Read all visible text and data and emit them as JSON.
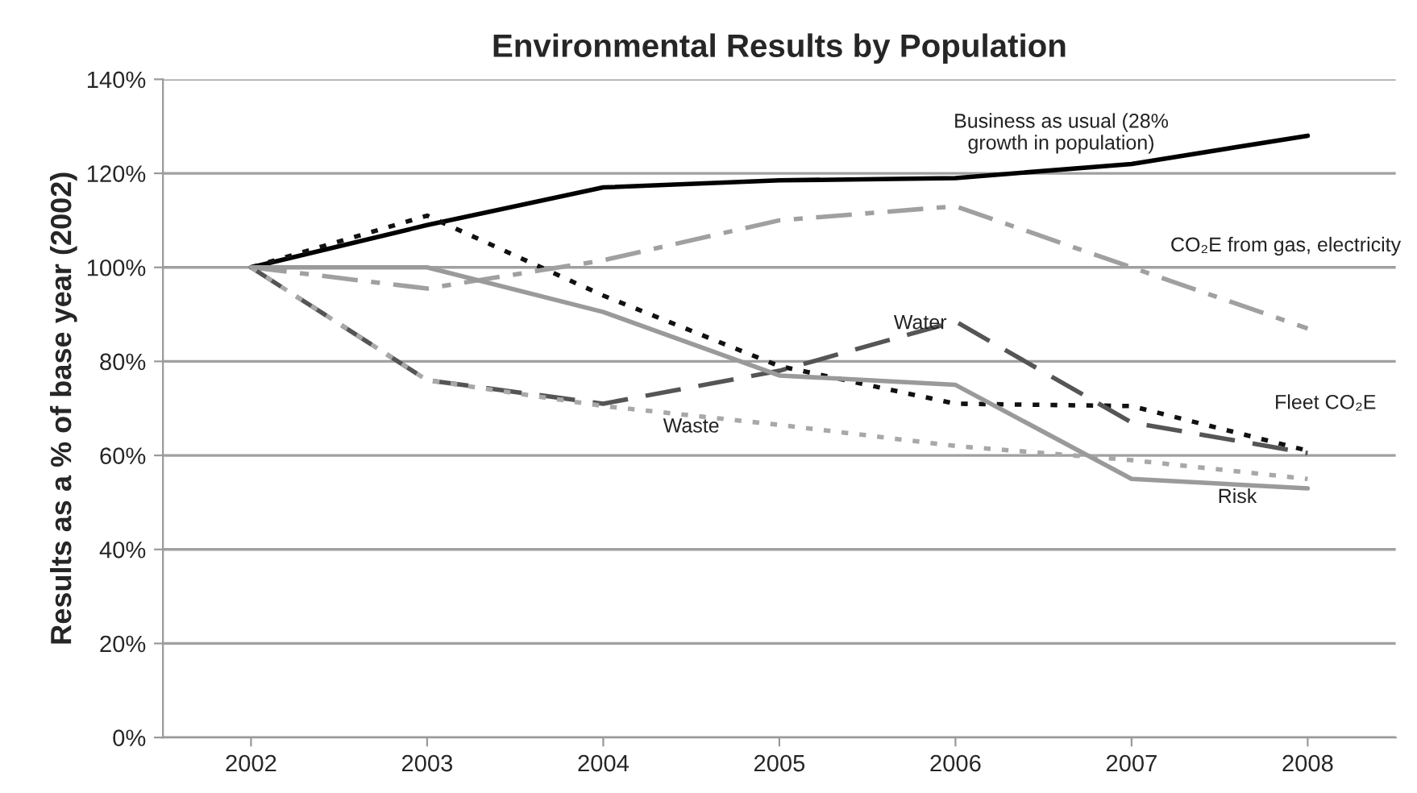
{
  "chart_data": {
    "type": "line",
    "title": "Environmental Results by Population",
    "ylabel": "Results as a % of base year (2002)",
    "x": [
      2002,
      2003,
      2004,
      2005,
      2006,
      2007,
      2008
    ],
    "xlim": [
      2001.5,
      2008.5
    ],
    "xticks": [
      2002,
      2003,
      2004,
      2005,
      2006,
      2007,
      2008
    ],
    "ylim": [
      0,
      140
    ],
    "yticks": [
      {
        "value": 0,
        "label": "0%"
      },
      {
        "value": 20,
        "label": "20%"
      },
      {
        "value": 40,
        "label": "40%"
      },
      {
        "value": 60,
        "label": "60%"
      },
      {
        "value": 80,
        "label": "80%"
      },
      {
        "value": 100,
        "label": "100%"
      },
      {
        "value": 120,
        "label": "120%"
      },
      {
        "value": 140,
        "label": "140%"
      }
    ],
    "grid": "y",
    "marker": "none",
    "series": [
      {
        "name": "Business as usual (28%\ngrowth in population)",
        "color": "#000000",
        "line_style": "solid",
        "values": [
          100,
          109,
          117,
          118.5,
          119,
          122,
          128
        ]
      },
      {
        "name": "Fleet CO₂E",
        "color": "#111111",
        "line_style": "dotted",
        "values": [
          100,
          111,
          94,
          79,
          71,
          70.5,
          61
        ]
      },
      {
        "name": "CO₂E from gas, electricity",
        "color": "#a0a0a0",
        "line_style": "dashdot",
        "values": [
          100,
          95.5,
          101.5,
          110,
          113,
          100,
          87
        ]
      },
      {
        "name": "Water",
        "color": "#555555",
        "line_style": "dashed",
        "values": [
          100,
          76,
          71,
          78,
          88.5,
          67,
          60.5
        ]
      },
      {
        "name": "Waste",
        "color": "#a8a8a8",
        "line_style": "dotted",
        "values": [
          100,
          76,
          70.5,
          66.5,
          62,
          59,
          55
        ]
      },
      {
        "name": "Risk",
        "color": "#9a9a9a",
        "line_style": "solid",
        "values": [
          100,
          100,
          90.5,
          77,
          75,
          55,
          53
        ]
      }
    ]
  }
}
